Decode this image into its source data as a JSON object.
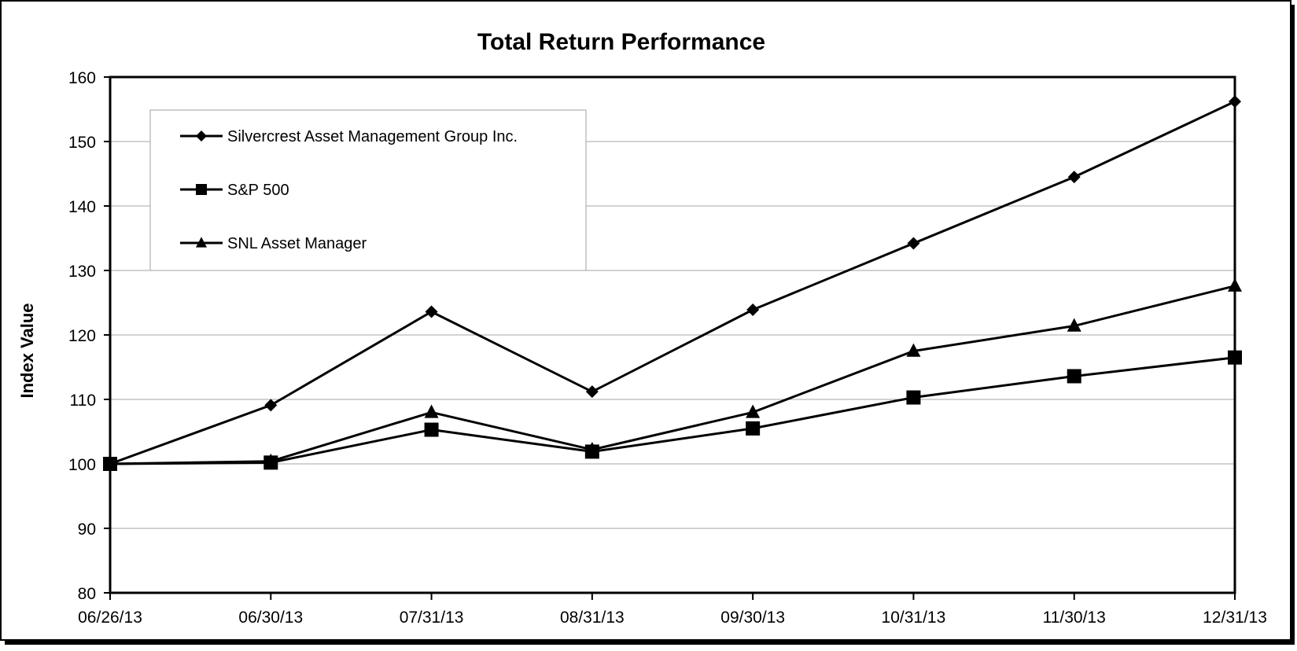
{
  "chart_data": {
    "type": "line",
    "title": "Total Return Performance",
    "xlabel": "",
    "ylabel": "Index Value",
    "categories": [
      "06/26/13",
      "06/30/13",
      "07/31/13",
      "08/31/13",
      "09/30/13",
      "10/31/13",
      "11/30/13",
      "12/31/13"
    ],
    "ylim": [
      80,
      160
    ],
    "yticks": [
      "80",
      "90",
      "100",
      "110",
      "120",
      "130",
      "140",
      "150",
      "160"
    ],
    "grid": true,
    "legend_position": "top-left",
    "series": [
      {
        "name": "Silvercrest Asset Management Group Inc.",
        "marker": "diamond",
        "values": [
          100,
          109.1,
          123.6,
          111.2,
          123.9,
          134.2,
          144.5,
          156.2
        ]
      },
      {
        "name": "S&P 500",
        "marker": "square",
        "values": [
          100,
          100.2,
          105.3,
          101.9,
          105.5,
          110.3,
          113.6,
          116.5
        ]
      },
      {
        "name": "SNL Asset Manager",
        "marker": "triangle",
        "values": [
          100,
          100.4,
          108.0,
          102.2,
          108.0,
          117.5,
          121.4,
          127.6
        ]
      }
    ]
  }
}
